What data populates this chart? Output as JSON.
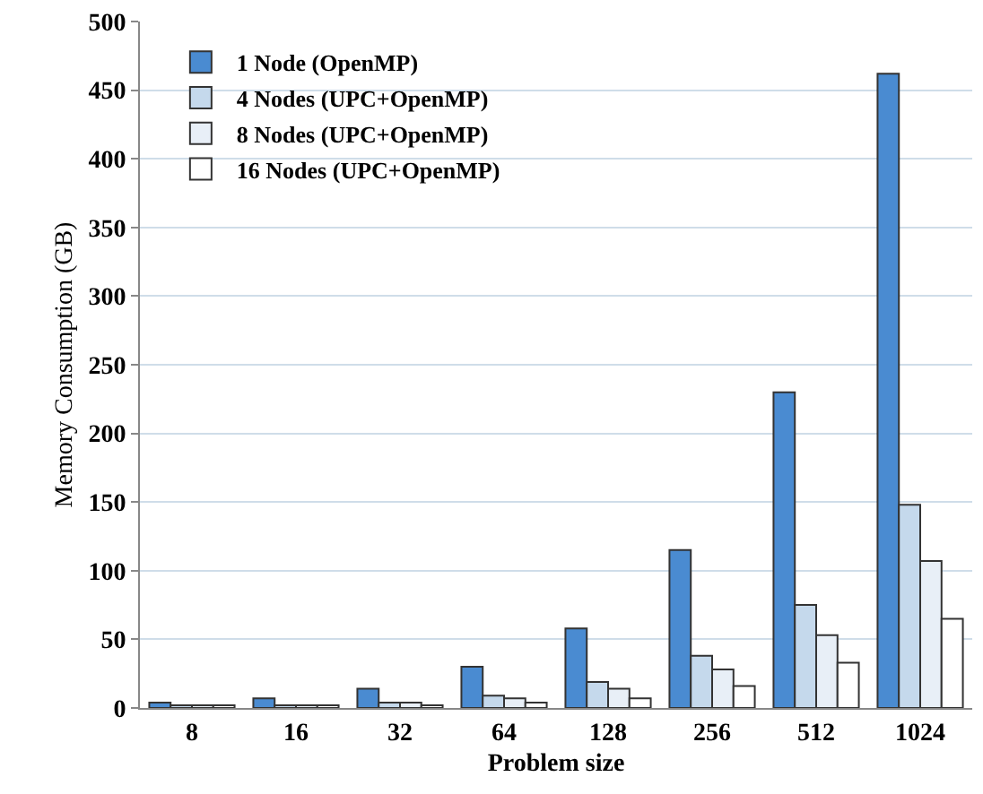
{
  "chart_data": {
    "type": "bar",
    "xlabel": "Problem size",
    "ylabel": "Memory Consumption (GB)",
    "categories": [
      "8",
      "16",
      "32",
      "64",
      "128",
      "256",
      "512",
      "1024"
    ],
    "series": [
      {
        "name": "1 Node (OpenMP)",
        "color": "#4a8bd1",
        "values": [
          4,
          7,
          14,
          30,
          58,
          115,
          230,
          462
        ]
      },
      {
        "name": "4 Nodes (UPC+OpenMP)",
        "color": "#c5d9ec",
        "values": [
          2,
          2,
          4,
          9,
          19,
          38,
          75,
          148
        ]
      },
      {
        "name": "8 Nodes (UPC+OpenMP)",
        "color": "#e8eff7",
        "values": [
          2,
          2,
          4,
          7,
          14,
          28,
          53,
          107
        ]
      },
      {
        "name": "16 Nodes (UPC+OpenMP)",
        "color": "#ffffff",
        "values": [
          2,
          2,
          2,
          4,
          7,
          16,
          33,
          65
        ]
      }
    ],
    "ylim": [
      0,
      500
    ],
    "yticks": [
      0,
      50,
      100,
      150,
      200,
      250,
      300,
      350,
      400,
      450,
      500
    ],
    "grid": "y",
    "legend": "top left"
  }
}
